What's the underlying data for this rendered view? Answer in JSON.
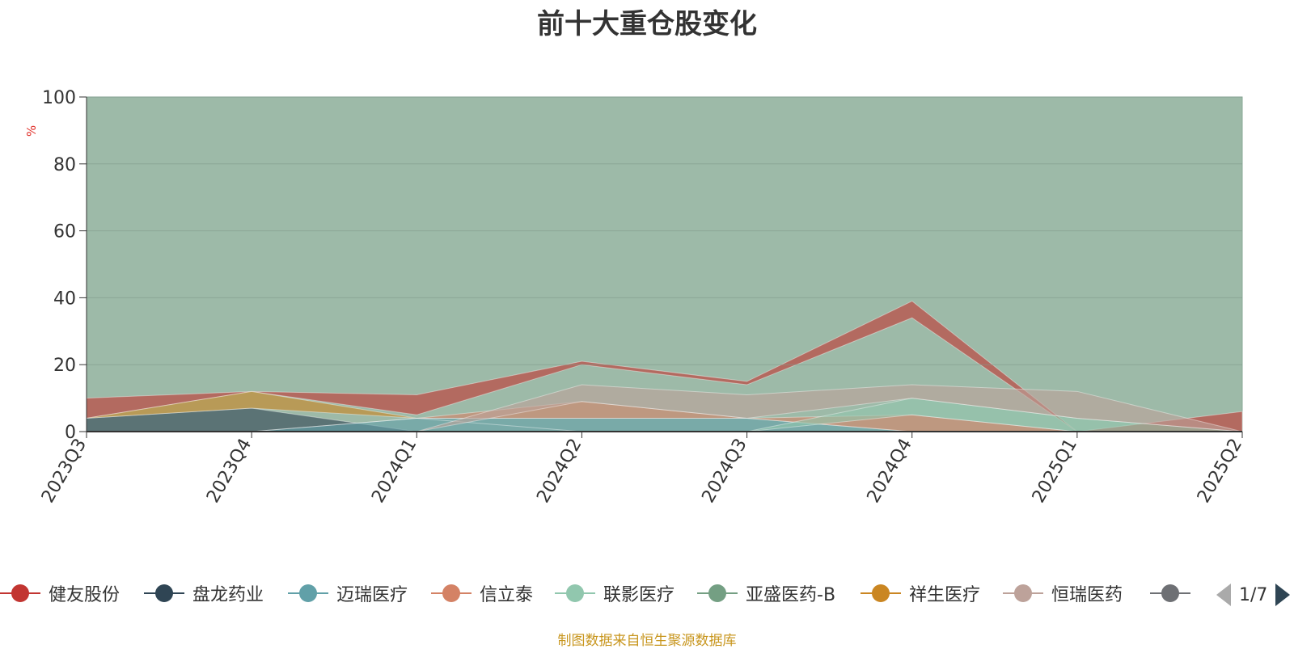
{
  "chart_data": {
    "type": "area",
    "title": "前十大重仓股变化",
    "ylabel": "%",
    "ylim": [
      0,
      100
    ],
    "yticks": [
      0,
      20,
      40,
      60,
      80,
      100
    ],
    "categories": [
      "2023Q3",
      "2023Q4",
      "2024Q1",
      "2024Q2",
      "2024Q3",
      "2024Q4",
      "2025Q1",
      "2025Q2"
    ],
    "grid": true,
    "legend_position": "bottom",
    "background_series": {
      "values": [
        100,
        100,
        100,
        100,
        100,
        100,
        100,
        100
      ],
      "color": "#9dbaa8"
    },
    "series": [
      {
        "name": "健友股份",
        "color": "#c23531",
        "lower": [
          4,
          12,
          5,
          20,
          14,
          34,
          0,
          0
        ],
        "upper": [
          10,
          12,
          11,
          21,
          15,
          39,
          0,
          6
        ]
      },
      {
        "name": "盘龙药业",
        "color": "#2f4554",
        "lower": [
          0,
          0,
          0,
          0,
          0,
          0,
          0,
          0
        ],
        "upper": [
          4,
          7,
          0,
          0,
          0,
          0,
          0,
          0
        ]
      },
      {
        "name": "迈瑞医疗",
        "color": "#61a0a8",
        "lower": [
          0,
          0,
          0,
          0,
          0,
          0,
          0,
          0
        ],
        "upper": [
          0,
          0,
          4,
          4,
          4,
          0,
          0,
          0
        ]
      },
      {
        "name": "信立泰",
        "color": "#d48265",
        "lower": [
          0,
          0,
          4,
          4,
          4,
          0,
          0,
          0
        ],
        "upper": [
          0,
          0,
          4,
          9,
          4,
          5,
          0,
          0
        ]
      },
      {
        "name": "联影医疗",
        "color": "#91c7ae",
        "lower": [
          0,
          0,
          0,
          0,
          0,
          5,
          0,
          0
        ],
        "upper": [
          0,
          0,
          0,
          0,
          0,
          10,
          4,
          0
        ]
      },
      {
        "name": "亚盛医药-B",
        "color": "#749f83",
        "lower": [
          0,
          0,
          0,
          0,
          0,
          0,
          0,
          0
        ],
        "upper": [
          0,
          0,
          0,
          0,
          0,
          0,
          0,
          0
        ]
      },
      {
        "name": "祥生医疗",
        "color": "#ca8622",
        "lower": [
          4,
          7,
          4,
          0,
          0,
          0,
          0,
          0
        ],
        "upper": [
          4,
          12,
          4,
          0,
          0,
          0,
          0,
          0
        ]
      },
      {
        "name": "恒瑞医药",
        "color": "#bda29a",
        "lower": [
          0,
          0,
          0,
          9,
          4,
          10,
          4,
          0
        ],
        "upper": [
          0,
          0,
          0,
          14,
          11,
          14,
          12,
          0
        ]
      }
    ],
    "legend_visible_items": [
      "健友股份",
      "盘龙药业",
      "迈瑞医疗",
      "信立泰",
      "联影医疗",
      "亚盛医药-B",
      "祥生医疗",
      "恒瑞医药"
    ],
    "legend_page": "1/7"
  },
  "source_note": "制图数据来自恒生聚源数据库"
}
